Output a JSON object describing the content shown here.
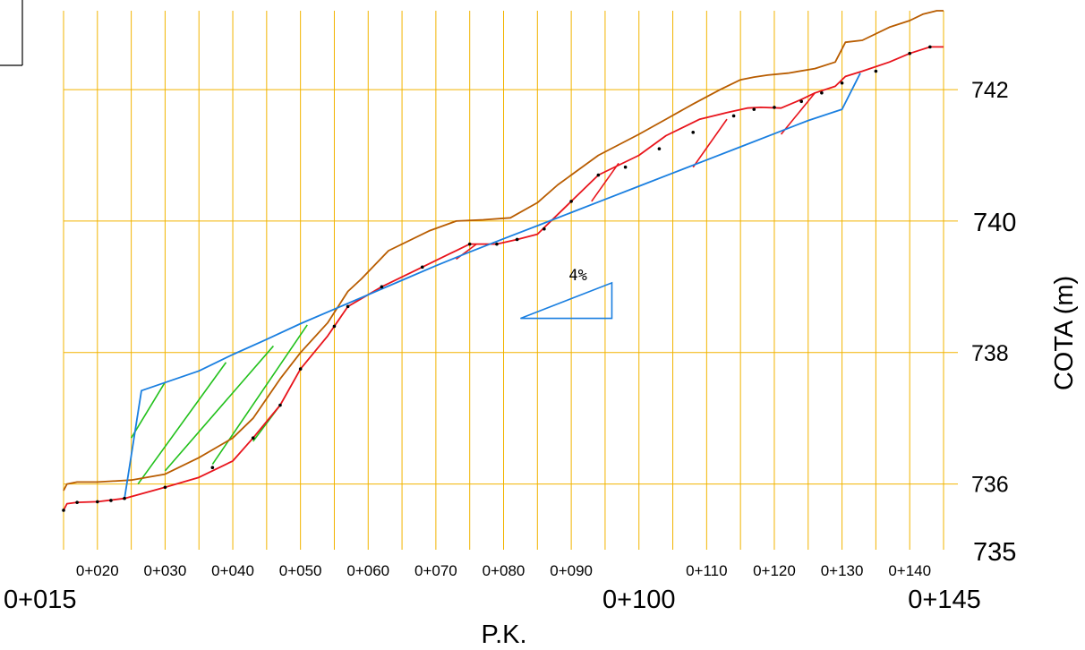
{
  "chart_data": {
    "type": "line",
    "xlabel": "P.K.",
    "ylabel": "COTA (m)",
    "xlim": [
      15,
      145
    ],
    "ylim": [
      735,
      743.2
    ],
    "colors": {
      "grid": "#f2b400",
      "terrain_top": "#b85c00",
      "terrain": "#e8141c",
      "rasante": "#1a7fe0",
      "hatch_fill": "#22c11c",
      "hatch_cut": "#e8141c",
      "points": "#000000"
    },
    "x_ticks_small": [
      {
        "v": 20,
        "label": "0+020"
      },
      {
        "v": 30,
        "label": "0+030"
      },
      {
        "v": 40,
        "label": "0+040"
      },
      {
        "v": 50,
        "label": "0+050"
      },
      {
        "v": 60,
        "label": "0+060"
      },
      {
        "v": 70,
        "label": "0+070"
      },
      {
        "v": 80,
        "label": "0+080"
      },
      {
        "v": 90,
        "label": "0+090"
      },
      {
        "v": 110,
        "label": "0+110"
      },
      {
        "v": 120,
        "label": "0+120"
      },
      {
        "v": 130,
        "label": "0+130"
      },
      {
        "v": 140,
        "label": "0+140"
      }
    ],
    "x_ticks_big": [
      {
        "v": 15,
        "label": "0+015"
      },
      {
        "v": 100,
        "label": "0+100"
      },
      {
        "v": 145,
        "label": "0+145"
      }
    ],
    "x_grid": [
      15,
      20,
      25,
      30,
      35,
      40,
      45,
      50,
      55,
      60,
      65,
      70,
      75,
      80,
      85,
      90,
      95,
      100,
      105,
      110,
      115,
      120,
      125,
      130,
      135,
      140,
      145
    ],
    "y_grid": [
      736,
      738,
      740,
      742
    ],
    "y_ticks": [
      {
        "v": 735,
        "label": "735",
        "size": "big"
      },
      {
        "v": 736,
        "label": "736",
        "size": "small"
      },
      {
        "v": 738,
        "label": "738",
        "size": "small"
      },
      {
        "v": 740,
        "label": "740",
        "size": "big"
      },
      {
        "v": 742,
        "label": "742",
        "size": "small"
      }
    ],
    "series": [
      {
        "key": "terrain_top",
        "x": [
          15,
          15.5,
          17,
          20,
          25,
          30,
          35,
          40,
          43,
          47,
          50,
          54,
          57,
          59,
          63,
          69,
          73,
          77,
          81,
          85,
          88,
          94,
          100,
          104,
          108,
          112,
          115,
          117,
          119,
          122,
          126,
          129,
          130.5,
          133,
          137,
          140,
          142,
          144,
          145
        ],
        "y": [
          735.9,
          736.0,
          736.03,
          736.03,
          736.06,
          736.15,
          736.4,
          736.7,
          737.0,
          737.6,
          738.0,
          738.45,
          738.93,
          739.12,
          739.55,
          739.85,
          740.0,
          740.02,
          740.05,
          740.28,
          740.55,
          741.0,
          741.32,
          741.55,
          741.78,
          742.0,
          742.15,
          742.19,
          742.22,
          742.25,
          742.32,
          742.42,
          742.72,
          742.75,
          742.95,
          743.05,
          743.15,
          743.2,
          743.2
        ]
      },
      {
        "key": "terrain",
        "x": [
          15,
          15.5,
          17,
          20,
          24,
          30,
          35,
          40,
          43,
          47,
          50,
          54,
          57,
          62,
          68,
          72,
          75,
          79,
          82,
          85,
          90,
          94,
          100,
          104,
          109,
          113,
          116,
          118,
          121,
          124,
          126,
          129,
          130.5,
          133,
          137,
          140,
          143,
          145
        ],
        "y": [
          735.6,
          735.7,
          735.72,
          735.73,
          735.78,
          735.95,
          736.1,
          736.35,
          736.7,
          737.2,
          737.75,
          738.25,
          738.7,
          739.0,
          739.3,
          739.5,
          739.65,
          739.65,
          739.72,
          739.8,
          740.3,
          740.7,
          741.0,
          741.3,
          741.55,
          741.65,
          741.72,
          741.73,
          741.72,
          741.85,
          741.95,
          742.05,
          742.2,
          742.28,
          742.42,
          742.55,
          742.65,
          742.65
        ]
      },
      {
        "key": "rasante",
        "x": [
          24,
          26.5,
          35,
          40,
          45,
          50,
          55,
          60,
          65,
          70,
          75,
          80,
          85,
          90,
          95,
          100,
          105,
          110,
          115,
          120,
          125,
          130,
          132.7
        ],
        "y": [
          735.78,
          737.42,
          737.72,
          737.97,
          738.2,
          738.44,
          738.66,
          738.88,
          739.1,
          739.32,
          739.53,
          739.73,
          739.93,
          740.13,
          740.33,
          740.53,
          740.73,
          740.93,
          741.13,
          741.33,
          741.53,
          741.7,
          742.25
        ]
      }
    ],
    "points": {
      "x": [
        15,
        17,
        20,
        22,
        24,
        30,
        37,
        43,
        47,
        50,
        55,
        57,
        62,
        68,
        75,
        79,
        82,
        86,
        90,
        94,
        98,
        103,
        108,
        114,
        117,
        120,
        124,
        127,
        130,
        135,
        140,
        143
      ],
      "y": [
        735.6,
        735.72,
        735.73,
        735.75,
        735.78,
        735.95,
        736.25,
        736.7,
        737.2,
        737.75,
        738.4,
        738.7,
        739.0,
        739.3,
        739.65,
        739.65,
        739.72,
        739.88,
        740.3,
        740.7,
        740.82,
        741.1,
        741.35,
        741.6,
        741.7,
        741.73,
        741.82,
        741.95,
        742.1,
        742.28,
        742.55,
        742.65
      ]
    },
    "hatch_fill": [
      [
        [
          25,
          736.7
        ],
        [
          30,
          737.55
        ]
      ],
      [
        [
          26,
          736.0
        ],
        [
          39,
          737.85
        ]
      ],
      [
        [
          30,
          736.2
        ],
        [
          46,
          738.1
        ]
      ],
      [
        [
          37,
          736.3
        ],
        [
          51,
          738.42
        ]
      ],
      [
        [
          43,
          736.65
        ],
        [
          47,
          737.2
        ]
      ]
    ],
    "hatch_cut": [
      [
        [
          73,
          739.42
        ],
        [
          76,
          739.65
        ]
      ],
      [
        [
          93,
          740.3
        ],
        [
          97,
          740.88
        ]
      ],
      [
        [
          108,
          740.82
        ],
        [
          113,
          741.55
        ]
      ],
      [
        [
          121,
          741.32
        ],
        [
          126,
          741.95
        ]
      ]
    ],
    "slope_marker": {
      "label": "4%",
      "triangle": [
        [
          82.5,
          738.52
        ],
        [
          96,
          738.52
        ],
        [
          96,
          739.06
        ]
      ],
      "label_at": [
        91,
        739.1
      ]
    }
  }
}
